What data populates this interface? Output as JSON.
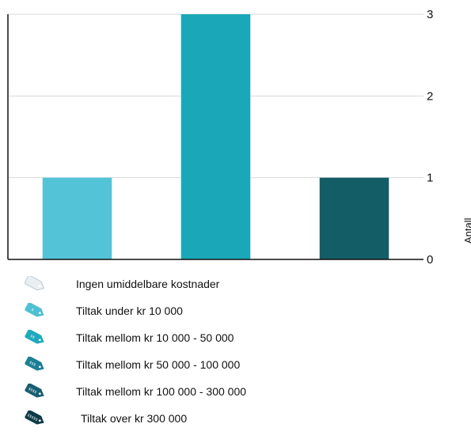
{
  "chart_data": {
    "type": "bar",
    "categories": [
      "",
      "",
      ""
    ],
    "values": [
      1,
      3,
      1
    ],
    "bar_colors": [
      "#53c3d7",
      "#1aa8b9",
      "#135d67"
    ],
    "ylabel": "Antall",
    "ylim": [
      0,
      3
    ],
    "yticks": [
      0,
      1,
      2,
      3
    ],
    "y_axis_side": "right",
    "grid": true
  },
  "legend": {
    "items": [
      {
        "label": "Ingen umiddelbare kostnader",
        "icon": "blank-tag-icon",
        "color": "#e9eef2",
        "mark": ""
      },
      {
        "label": "Tiltak under kr 10 000",
        "icon": "price-tag-icon",
        "color": "#4fc0d3",
        "mark": "$"
      },
      {
        "label": "Tiltak mellom kr 10 000 - 50 000",
        "icon": "price-tag-icon",
        "color": "#1fa9bc",
        "mark": "$$"
      },
      {
        "label": "Tiltak mellom kr 50 000 - 100 000",
        "icon": "price-tag-icon",
        "color": "#1c7f95",
        "mark": "$$$"
      },
      {
        "label": "Tiltak mellom kr 100 000 - 300 000",
        "icon": "price-tag-icon",
        "color": "#175e70",
        "mark": "$$$$"
      },
      {
        "label": "Tiltak over kr  300 000",
        "icon": "price-tag-icon",
        "color": "#0f3a48",
        "mark": "$$$$$"
      }
    ]
  }
}
